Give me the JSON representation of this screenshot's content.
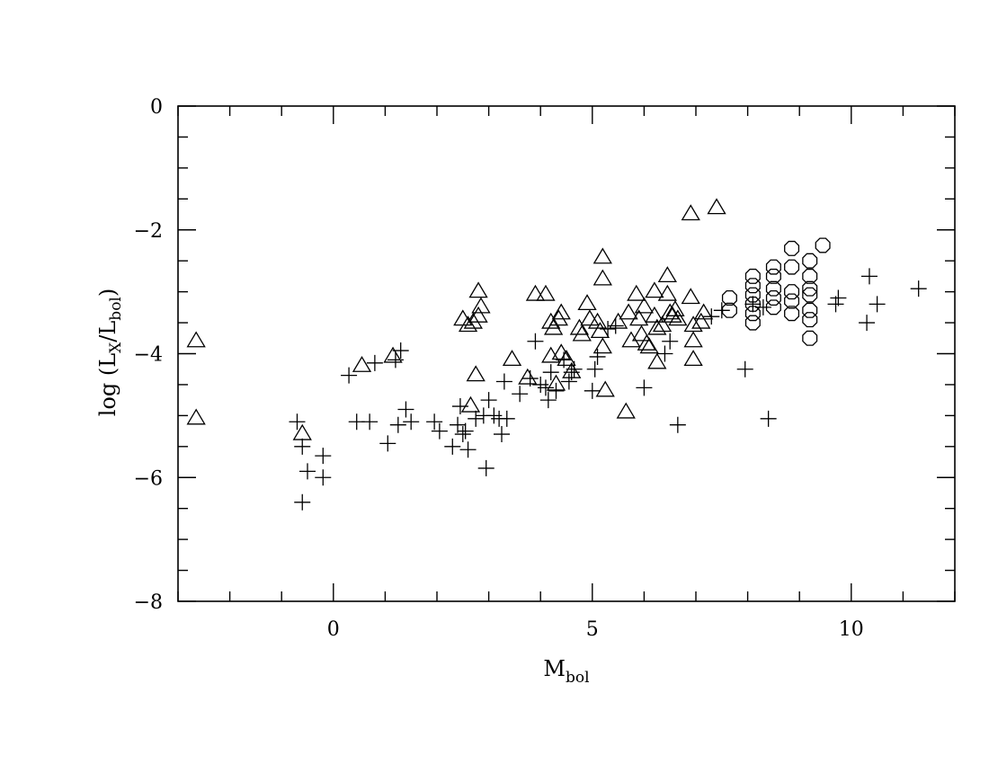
{
  "chart_data": {
    "type": "scatter",
    "title": "",
    "xlabel": {
      "main": "M",
      "sub": "bol"
    },
    "ylabel": {
      "prefix": "log  (L",
      "sub1": "X",
      "mid": "/L",
      "sub2": "bol",
      "suffix": ")"
    },
    "xlim": [
      -3,
      12
    ],
    "ylim": [
      -8,
      0
    ],
    "x_ticks": [
      {
        "value": 0,
        "label": "0"
      },
      {
        "value": 5,
        "label": "5"
      },
      {
        "value": 10,
        "label": "10"
      }
    ],
    "y_ticks": [
      {
        "value": 0,
        "label": "0"
      },
      {
        "value": -2,
        "label": "−2"
      },
      {
        "value": -4,
        "label": "−4"
      },
      {
        "value": -6,
        "label": "−6"
      },
      {
        "value": -8,
        "label": "−8"
      }
    ],
    "x_minor_step": 1,
    "y_minor_step": 0.5,
    "grid": false,
    "series": [
      {
        "marker": "plus",
        "points": [
          [
            -0.7,
            -5.1
          ],
          [
            -0.6,
            -5.5
          ],
          [
            -0.5,
            -5.9
          ],
          [
            -0.6,
            -6.4
          ],
          [
            -0.2,
            -5.65
          ],
          [
            -0.2,
            -6.0
          ],
          [
            0.3,
            -4.35
          ],
          [
            0.45,
            -5.1
          ],
          [
            0.7,
            -5.1
          ],
          [
            0.8,
            -4.15
          ],
          [
            1.05,
            -5.45
          ],
          [
            1.2,
            -4.1
          ],
          [
            1.25,
            -5.15
          ],
          [
            1.3,
            -3.95
          ],
          [
            1.4,
            -4.9
          ],
          [
            1.5,
            -5.1
          ],
          [
            1.95,
            -5.1
          ],
          [
            2.05,
            -5.25
          ],
          [
            2.3,
            -5.5
          ],
          [
            2.4,
            -5.15
          ],
          [
            2.45,
            -4.85
          ],
          [
            2.5,
            -5.3
          ],
          [
            2.55,
            -5.25
          ],
          [
            2.6,
            -5.55
          ],
          [
            2.75,
            -5.05
          ],
          [
            2.9,
            -5.0
          ],
          [
            2.95,
            -5.85
          ],
          [
            3.0,
            -4.75
          ],
          [
            3.1,
            -5.0
          ],
          [
            3.2,
            -5.05
          ],
          [
            3.25,
            -5.3
          ],
          [
            3.3,
            -4.45
          ],
          [
            3.35,
            -5.05
          ],
          [
            3.6,
            -4.65
          ],
          [
            3.8,
            -4.4
          ],
          [
            3.9,
            -3.8
          ],
          [
            4.0,
            -4.5
          ],
          [
            4.1,
            -4.55
          ],
          [
            4.15,
            -4.75
          ],
          [
            4.2,
            -4.3
          ],
          [
            4.3,
            -4.6
          ],
          [
            4.45,
            -4.1
          ],
          [
            4.55,
            -4.45
          ],
          [
            4.6,
            -4.3
          ],
          [
            4.65,
            -4.25
          ],
          [
            5.0,
            -4.6
          ],
          [
            5.05,
            -4.25
          ],
          [
            5.1,
            -4.05
          ],
          [
            5.3,
            -3.6
          ],
          [
            5.45,
            -3.55
          ],
          [
            6.0,
            -4.55
          ],
          [
            6.4,
            -4.0
          ],
          [
            6.5,
            -3.8
          ],
          [
            6.65,
            -5.15
          ],
          [
            7.3,
            -3.4
          ],
          [
            7.5,
            -3.3
          ],
          [
            7.95,
            -4.25
          ],
          [
            8.1,
            -3.2
          ],
          [
            8.3,
            -3.25
          ],
          [
            8.4,
            -5.05
          ],
          [
            9.7,
            -3.2
          ],
          [
            9.75,
            -3.1
          ],
          [
            10.3,
            -3.5
          ],
          [
            10.35,
            -2.75
          ],
          [
            10.5,
            -3.2
          ],
          [
            11.3,
            -2.95
          ]
        ]
      },
      {
        "marker": "triangle",
        "points": [
          [
            -2.65,
            -3.8
          ],
          [
            -2.65,
            -5.05
          ],
          [
            -0.6,
            -5.3
          ],
          [
            0.55,
            -4.2
          ],
          [
            1.15,
            -4.05
          ],
          [
            2.5,
            -3.45
          ],
          [
            2.6,
            -3.55
          ],
          [
            2.65,
            -4.85
          ],
          [
            2.7,
            -3.5
          ],
          [
            2.75,
            -4.35
          ],
          [
            2.8,
            -3.0
          ],
          [
            2.8,
            -3.4
          ],
          [
            2.85,
            -3.25
          ],
          [
            3.45,
            -4.1
          ],
          [
            3.75,
            -4.4
          ],
          [
            3.9,
            -3.05
          ],
          [
            4.1,
            -3.05
          ],
          [
            4.2,
            -3.5
          ],
          [
            4.2,
            -4.05
          ],
          [
            4.25,
            -3.6
          ],
          [
            4.3,
            -4.5
          ],
          [
            4.35,
            -3.45
          ],
          [
            4.4,
            -3.35
          ],
          [
            4.4,
            -4.0
          ],
          [
            4.5,
            -4.1
          ],
          [
            4.6,
            -4.3
          ],
          [
            4.75,
            -3.6
          ],
          [
            4.8,
            -3.7
          ],
          [
            4.9,
            -3.2
          ],
          [
            4.95,
            -3.45
          ],
          [
            5.1,
            -3.5
          ],
          [
            5.15,
            -3.65
          ],
          [
            5.2,
            -2.45
          ],
          [
            5.2,
            -2.8
          ],
          [
            5.2,
            -3.9
          ],
          [
            5.25,
            -4.6
          ],
          [
            5.5,
            -3.5
          ],
          [
            5.65,
            -4.95
          ],
          [
            5.7,
            -3.35
          ],
          [
            5.75,
            -3.8
          ],
          [
            5.85,
            -3.05
          ],
          [
            5.9,
            -3.45
          ],
          [
            5.95,
            -3.7
          ],
          [
            6.0,
            -3.25
          ],
          [
            6.05,
            -3.85
          ],
          [
            6.1,
            -3.9
          ],
          [
            6.2,
            -3.0
          ],
          [
            6.2,
            -3.4
          ],
          [
            6.25,
            -3.6
          ],
          [
            6.25,
            -4.15
          ],
          [
            6.35,
            -3.55
          ],
          [
            6.45,
            -2.75
          ],
          [
            6.45,
            -3.05
          ],
          [
            6.5,
            -3.35
          ],
          [
            6.55,
            -3.4
          ],
          [
            6.6,
            -3.3
          ],
          [
            6.65,
            -3.45
          ],
          [
            6.9,
            -3.1
          ],
          [
            6.95,
            -3.55
          ],
          [
            6.95,
            -3.8
          ],
          [
            6.95,
            -4.1
          ],
          [
            6.9,
            -1.75
          ],
          [
            7.1,
            -3.5
          ],
          [
            7.15,
            -3.35
          ],
          [
            7.4,
            -1.65
          ]
        ]
      },
      {
        "marker": "circle",
        "points": [
          [
            7.65,
            -3.1
          ],
          [
            7.65,
            -3.3
          ],
          [
            8.1,
            -2.75
          ],
          [
            8.1,
            -2.9
          ],
          [
            8.1,
            -3.05
          ],
          [
            8.1,
            -3.2
          ],
          [
            8.1,
            -3.35
          ],
          [
            8.1,
            -3.5
          ],
          [
            8.5,
            -2.6
          ],
          [
            8.5,
            -2.75
          ],
          [
            8.5,
            -2.95
          ],
          [
            8.5,
            -3.1
          ],
          [
            8.5,
            -3.25
          ],
          [
            8.85,
            -2.3
          ],
          [
            8.85,
            -2.6
          ],
          [
            8.85,
            -3.0
          ],
          [
            8.85,
            -3.15
          ],
          [
            8.85,
            -3.35
          ],
          [
            9.2,
            -2.5
          ],
          [
            9.2,
            -2.75
          ],
          [
            9.2,
            -2.95
          ],
          [
            9.2,
            -3.05
          ],
          [
            9.2,
            -3.3
          ],
          [
            9.2,
            -3.45
          ],
          [
            9.2,
            -3.75
          ],
          [
            9.45,
            -2.25
          ]
        ]
      }
    ]
  }
}
